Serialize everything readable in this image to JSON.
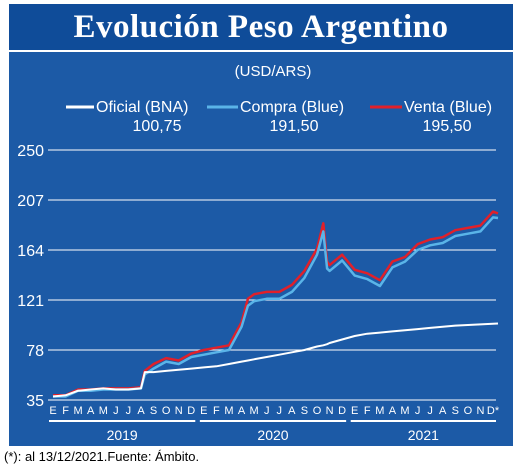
{
  "title": "Evolución Peso Argentino",
  "footnote": "(*): al 13/12/2021.Fuente: Ámbito.",
  "chart_data": {
    "type": "line",
    "subtitle": "(USD/ARS)",
    "background": "#1c5aa6",
    "grid": "horizontal",
    "ylim": [
      35,
      250
    ],
    "yticks": [
      35,
      78,
      121,
      164,
      207,
      250
    ],
    "ytick_labels": [
      "35",
      "78",
      "121",
      "164",
      "207",
      "250"
    ],
    "months": [
      "E",
      "F",
      "M",
      "A",
      "M",
      "J",
      "J",
      "A",
      "S",
      "O",
      "N",
      "D",
      "E",
      "F",
      "M",
      "A",
      "M",
      "J",
      "J",
      "A",
      "S",
      "O",
      "N",
      "D",
      "E",
      "F",
      "M",
      "A",
      "M",
      "J",
      "J",
      "A",
      "S",
      "O",
      "N",
      "D*"
    ],
    "years": [
      "2019",
      "2020",
      "2021"
    ],
    "x": [
      0,
      1,
      2,
      3,
      4,
      5,
      6,
      7,
      7.3,
      8,
      9,
      10,
      11,
      12,
      13,
      14,
      15,
      15.5,
      16,
      17,
      18,
      19,
      20,
      21,
      21.5,
      21.8,
      22,
      23,
      24,
      25,
      26,
      27,
      28,
      29,
      30,
      31,
      32,
      33,
      34,
      35,
      35.4
    ],
    "series": [
      {
        "name": "Oficial (BNA)",
        "label_value": "100,75",
        "color": "#ffffff",
        "values": [
          38,
          39,
          43,
          44,
          45,
          44,
          44,
          45,
          59,
          59,
          60,
          61,
          62,
          63,
          64,
          66,
          68,
          69,
          70,
          72,
          74,
          76,
          78,
          81,
          82,
          83,
          84,
          87,
          90,
          92,
          93,
          94,
          95,
          96,
          97,
          98,
          99,
          99.5,
          100,
          100.5,
          100.75
        ]
      },
      {
        "name": "Compra (Blue)",
        "label_value": "191,50",
        "color": "#5ab4e8",
        "values": [
          38,
          38,
          43,
          43,
          44,
          44,
          44,
          45,
          57,
          62,
          68,
          66,
          72,
          74,
          76,
          78,
          98,
          116,
          120,
          122,
          122,
          128,
          140,
          160,
          180,
          148,
          146,
          155,
          142,
          139,
          133,
          149,
          154,
          164,
          168,
          170,
          176,
          178,
          180,
          192,
          191.5
        ]
      },
      {
        "name": "Venta (Blue)",
        "label_value": "195,50",
        "color": "#e0202a",
        "values": [
          39,
          39,
          44,
          44,
          45,
          45,
          45,
          46,
          60,
          66,
          71,
          69,
          75,
          78,
          80,
          82,
          102,
          122,
          126,
          128,
          128,
          134,
          146,
          165,
          187,
          154,
          151,
          160,
          147,
          144,
          138,
          154,
          158,
          169,
          173,
          175,
          181,
          183,
          185,
          197,
          195.5
        ]
      }
    ]
  }
}
